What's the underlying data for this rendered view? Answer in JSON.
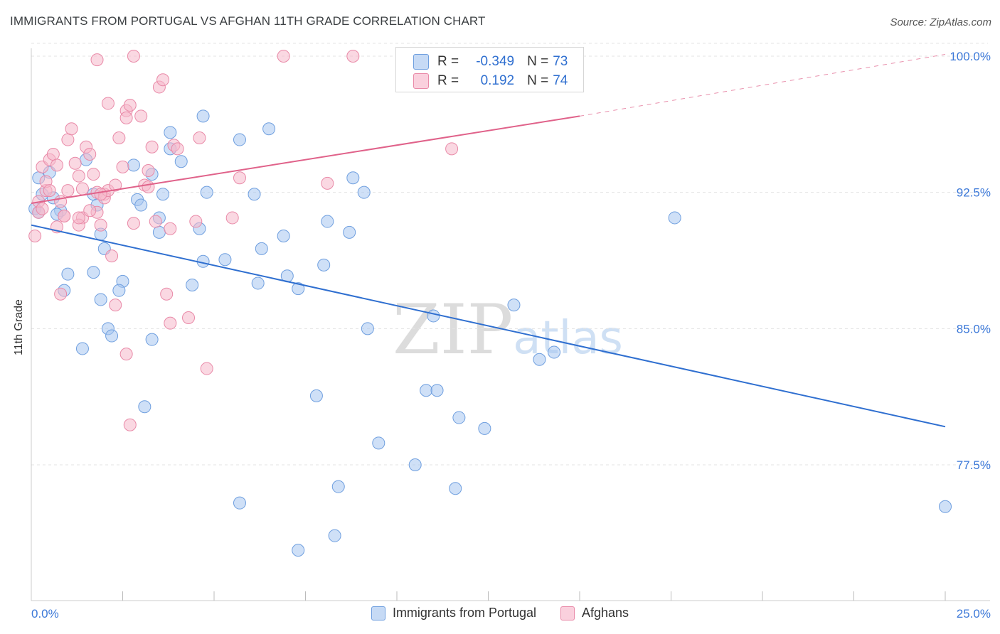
{
  "title": "IMMIGRANTS FROM PORTUGAL VS AFGHAN 11TH GRADE CORRELATION CHART",
  "source": "Source: ZipAtlas.com",
  "watermark": {
    "zip": "ZIP",
    "atlas": "atlas"
  },
  "legend_box": {
    "rows": [
      {
        "r_label": "R =",
        "r_value": "-0.349",
        "n_label": "N =",
        "n_value": "73",
        "color": "#a8c6f0"
      },
      {
        "r_label": "R =",
        "r_value": "0.192",
        "n_label": "N =",
        "n_value": "74",
        "color": "#f6b8cb"
      }
    ]
  },
  "chart_data": {
    "type": "scatter",
    "title": "IMMIGRANTS FROM PORTUGAL VS AFGHAN 11TH GRADE CORRELATION CHART",
    "xlabel": "",
    "ylabel": "11th Grade",
    "xlim": [
      0,
      25
    ],
    "ylim": [
      71.5,
      101
    ],
    "x_ticks_labeled": [
      "0.0%",
      "25.0%"
    ],
    "y_ticks": [
      77.5,
      85.0,
      92.5,
      100.0
    ],
    "y_tick_labels": [
      "77.5%",
      "85.0%",
      "92.5%",
      "100.0%"
    ],
    "grid": true,
    "legend": "bottom",
    "series": [
      {
        "name": "Immigrants from Portugal",
        "color": "#a8c6f0",
        "stroke": "#6f9fdf",
        "trend": {
          "x": [
            0,
            25
          ],
          "y": [
            90.7,
            79.6
          ],
          "color": "#2f6fd0"
        },
        "points": [
          [
            0.2,
            93.3
          ],
          [
            0.3,
            92.4
          ],
          [
            0.1,
            91.6
          ],
          [
            0.2,
            91.4
          ],
          [
            0.5,
            93.6
          ],
          [
            0.6,
            92.2
          ],
          [
            0.8,
            91.5
          ],
          [
            0.7,
            91.3
          ],
          [
            1.5,
            94.3
          ],
          [
            1.7,
            92.4
          ],
          [
            1.8,
            91.8
          ],
          [
            1.9,
            90.2
          ],
          [
            2.0,
            89.4
          ],
          [
            1.0,
            88.0
          ],
          [
            1.7,
            88.1
          ],
          [
            2.5,
            87.6
          ],
          [
            2.4,
            87.1
          ],
          [
            1.9,
            86.6
          ],
          [
            2.1,
            85.0
          ],
          [
            2.2,
            84.6
          ],
          [
            1.4,
            83.9
          ],
          [
            0.9,
            87.1
          ],
          [
            2.8,
            94.0
          ],
          [
            2.9,
            92.1
          ],
          [
            3.0,
            91.8
          ],
          [
            3.3,
            93.5
          ],
          [
            3.6,
            92.4
          ],
          [
            3.5,
            91.1
          ],
          [
            3.5,
            90.3
          ],
          [
            3.8,
            95.8
          ],
          [
            3.8,
            94.9
          ],
          [
            4.1,
            94.2
          ],
          [
            4.7,
            96.7
          ],
          [
            4.8,
            92.5
          ],
          [
            4.4,
            87.4
          ],
          [
            4.6,
            90.5
          ],
          [
            4.7,
            88.7
          ],
          [
            3.3,
            84.4
          ],
          [
            3.1,
            80.7
          ],
          [
            5.3,
            88.8
          ],
          [
            5.7,
            95.4
          ],
          [
            6.1,
            92.4
          ],
          [
            6.5,
            96.0
          ],
          [
            6.3,
            89.4
          ],
          [
            6.9,
            90.1
          ],
          [
            7.0,
            87.9
          ],
          [
            6.2,
            87.5
          ],
          [
            7.3,
            87.2
          ],
          [
            8.0,
            88.5
          ],
          [
            8.1,
            90.9
          ],
          [
            8.7,
            90.3
          ],
          [
            8.8,
            93.3
          ],
          [
            9.1,
            92.5
          ],
          [
            9.2,
            85.0
          ],
          [
            7.8,
            81.3
          ],
          [
            9.5,
            78.7
          ],
          [
            10.5,
            77.5
          ],
          [
            10.8,
            81.6
          ],
          [
            11.1,
            81.6
          ],
          [
            11.7,
            80.1
          ],
          [
            12.4,
            79.5
          ],
          [
            11.6,
            76.2
          ],
          [
            8.4,
            76.3
          ],
          [
            7.3,
            72.8
          ],
          [
            8.3,
            73.6
          ],
          [
            5.7,
            75.4
          ],
          [
            13.2,
            86.3
          ],
          [
            13.9,
            83.3
          ],
          [
            14.3,
            83.7
          ],
          [
            11.0,
            85.7
          ],
          [
            17.6,
            91.1
          ],
          [
            14.0,
            100.1
          ],
          [
            25.0,
            75.2
          ]
        ]
      },
      {
        "name": "Afghans",
        "color": "#f6b8cb",
        "stroke": "#e98aa8",
        "trend": {
          "x": [
            0,
            15
          ],
          "y": [
            91.9,
            96.7
          ],
          "color": "#e0628a",
          "dashed_extension": {
            "x": [
              15,
              25
            ],
            "y": [
              96.7,
              100.1
            ]
          }
        },
        "points": [
          [
            0.1,
            90.1
          ],
          [
            0.2,
            91.4
          ],
          [
            0.2,
            92.0
          ],
          [
            0.3,
            91.6
          ],
          [
            0.4,
            92.6
          ],
          [
            0.4,
            93.1
          ],
          [
            0.3,
            93.9
          ],
          [
            0.5,
            92.6
          ],
          [
            0.5,
            94.3
          ],
          [
            0.6,
            94.6
          ],
          [
            0.7,
            94.0
          ],
          [
            0.8,
            92.0
          ],
          [
            0.9,
            91.2
          ],
          [
            1.0,
            92.6
          ],
          [
            1.0,
            95.4
          ],
          [
            1.1,
            96.0
          ],
          [
            1.2,
            94.1
          ],
          [
            1.3,
            93.4
          ],
          [
            1.4,
            92.7
          ],
          [
            1.4,
            91.1
          ],
          [
            1.3,
            90.7
          ],
          [
            1.5,
            95.0
          ],
          [
            1.6,
            94.6
          ],
          [
            1.7,
            93.5
          ],
          [
            1.8,
            92.5
          ],
          [
            1.8,
            91.4
          ],
          [
            1.9,
            90.7
          ],
          [
            2.0,
            92.4
          ],
          [
            2.0,
            92.2
          ],
          [
            2.1,
            92.6
          ],
          [
            2.2,
            89.0
          ],
          [
            2.3,
            92.9
          ],
          [
            2.3,
            86.3
          ],
          [
            2.4,
            95.5
          ],
          [
            2.5,
            93.9
          ],
          [
            2.6,
            97.0
          ],
          [
            2.6,
            96.6
          ],
          [
            2.7,
            97.3
          ],
          [
            2.6,
            83.6
          ],
          [
            2.7,
            79.7
          ],
          [
            2.8,
            90.8
          ],
          [
            3.0,
            96.7
          ],
          [
            3.1,
            92.9
          ],
          [
            3.2,
            93.7
          ],
          [
            3.3,
            95.0
          ],
          [
            3.4,
            90.9
          ],
          [
            3.5,
            98.3
          ],
          [
            3.6,
            98.7
          ],
          [
            3.7,
            86.9
          ],
          [
            3.8,
            85.3
          ],
          [
            3.8,
            90.5
          ],
          [
            3.9,
            95.1
          ],
          [
            4.0,
            94.9
          ],
          [
            4.3,
            85.6
          ],
          [
            4.5,
            90.9
          ],
          [
            4.6,
            95.5
          ],
          [
            4.8,
            82.8
          ],
          [
            5.5,
            91.1
          ],
          [
            5.7,
            93.3
          ],
          [
            2.1,
            97.4
          ],
          [
            2.8,
            100.0
          ],
          [
            6.9,
            100.0
          ],
          [
            8.8,
            100.0
          ],
          [
            10.3,
            98.5
          ],
          [
            1.8,
            99.8
          ],
          [
            8.1,
            93.0
          ],
          [
            11.5,
            94.9
          ],
          [
            0.8,
            86.9
          ],
          [
            1.3,
            91.1
          ],
          [
            0.7,
            90.6
          ],
          [
            1.9,
            92.4
          ],
          [
            3.2,
            92.8
          ],
          [
            0.9,
            91.2
          ],
          [
            1.6,
            91.5
          ]
        ]
      }
    ]
  }
}
